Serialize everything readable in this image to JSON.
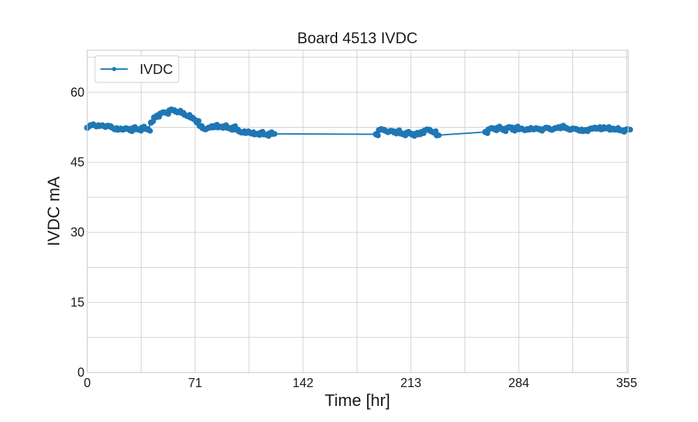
{
  "chart_data": {
    "type": "line",
    "title": "Board 4513 IVDC",
    "xlabel": "Time [hr]",
    "ylabel": "IVDC mA",
    "xlim": [
      0,
      356
    ],
    "ylim": [
      0,
      69
    ],
    "xticks": [
      0,
      71,
      142,
      213,
      284,
      355
    ],
    "yticks": [
      0,
      15,
      30,
      45,
      60
    ],
    "grid": true,
    "legend_position": "top-left",
    "series": [
      {
        "name": "IVDC",
        "color": "#1f77b4",
        "marker": "dot",
        "x": [
          0,
          2,
          4,
          6,
          8,
          10,
          12,
          14,
          16,
          18,
          20,
          22,
          24,
          26,
          28,
          30,
          32,
          34,
          36,
          38,
          40,
          42,
          44,
          46,
          48,
          50,
          52,
          54,
          56,
          58,
          60,
          62,
          64,
          66,
          68,
          70,
          72,
          74,
          76,
          78,
          80,
          82,
          84,
          86,
          88,
          90,
          92,
          94,
          96,
          98,
          100,
          102,
          104,
          106,
          108,
          110,
          112,
          114,
          116,
          118,
          120,
          122,
          190,
          192,
          194,
          196,
          198,
          200,
          202,
          204,
          206,
          208,
          210,
          212,
          214,
          216,
          218,
          220,
          222,
          224,
          226,
          228,
          230,
          262,
          264,
          266,
          268,
          270,
          272,
          274,
          276,
          278,
          280,
          282,
          284,
          286,
          288,
          290,
          292,
          294,
          296,
          298,
          300,
          302,
          304,
          306,
          308,
          310,
          312,
          314,
          316,
          318,
          320,
          322,
          324,
          326,
          328,
          330,
          332,
          334,
          336,
          338,
          340,
          342,
          344,
          346,
          348,
          350,
          352,
          354,
          356
        ],
        "values": [
          52.4,
          52.9,
          53.1,
          52.7,
          52.8,
          52.9,
          52.6,
          52.8,
          52.5,
          52.1,
          52.0,
          52.2,
          52.1,
          52.2,
          51.9,
          52.3,
          52.1,
          52.0,
          52.4,
          52.2,
          52.0,
          53.5,
          54.6,
          55.0,
          55.4,
          55.7,
          55.6,
          56.1,
          56.2,
          55.9,
          55.8,
          55.6,
          55.2,
          54.9,
          54.6,
          54.3,
          53.6,
          52.8,
          52.3,
          52.1,
          52.4,
          52.7,
          52.8,
          52.5,
          52.6,
          52.7,
          52.4,
          52.2,
          52.5,
          52.0,
          51.6,
          51.4,
          51.3,
          51.6,
          51.2,
          51.0,
          51.1,
          51.3,
          51.0,
          50.9,
          51.2,
          51.1,
          51.0,
          51.9,
          52.0,
          51.8,
          51.5,
          51.7,
          51.4,
          51.6,
          51.2,
          51.0,
          51.3,
          51.2,
          50.9,
          51.1,
          51.0,
          51.5,
          51.8,
          52.0,
          51.7,
          51.4,
          50.8,
          51.5,
          52.0,
          52.3,
          52.1,
          52.4,
          52.2,
          51.9,
          52.3,
          52.5,
          52.0,
          52.4,
          52.1,
          52.2,
          51.9,
          52.0,
          52.3,
          52.1,
          52.2,
          52.0,
          52.1,
          52.4,
          52.2,
          52.0,
          52.3,
          52.5,
          52.6,
          52.4,
          52.2,
          52.0,
          52.2,
          52.1,
          51.8,
          51.7,
          51.9,
          52.0,
          52.2,
          52.4,
          52.3,
          52.1,
          52.5,
          52.3,
          52.0,
          52.2,
          52.1,
          51.9,
          51.8,
          51.9,
          52.0
        ]
      }
    ]
  }
}
